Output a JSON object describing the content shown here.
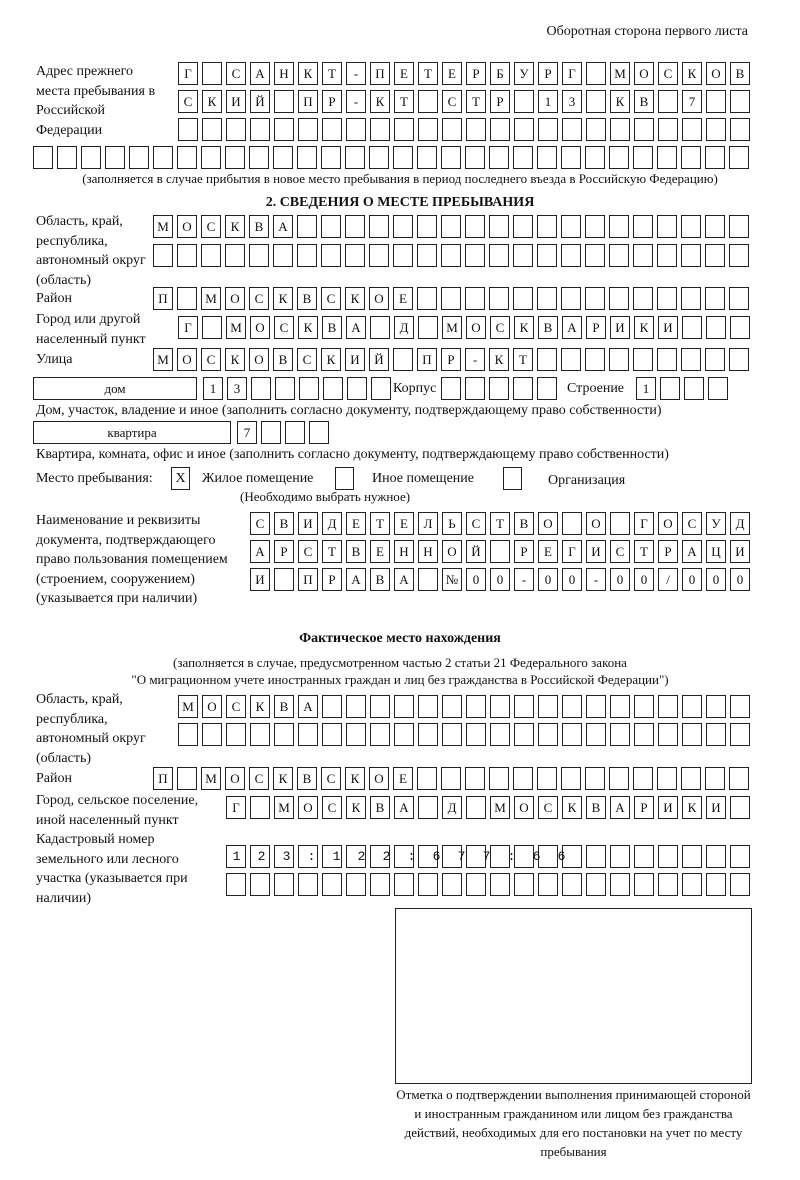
{
  "header": "Оборотная сторона первого листа",
  "previous_address": {
    "label": "Адрес прежнего места пребывания в Российской Федерации",
    "rows": [
      "Г САНКТ-ПЕТЕРБУРГ МОСКОВ",
      "СКИЙ ПР-КТ СТР 13 КВ 7  ",
      "                        ",
      "                              "
    ],
    "note": "(заполняется в случае прибытия в новое место пребывания в период последнего въезда в Российскую Федерацию)"
  },
  "section2": {
    "title": "2. СВЕДЕНИЯ О МЕСТЕ ПРЕБЫВАНИЯ",
    "region_label": "Область, край, республика, автономный округ (область)",
    "region_rows": [
      "МОСКВА                   ",
      "                         "
    ],
    "district_label": "Район",
    "district_row": "П МОСКВСКОЕ              ",
    "city_label": "Город или другой населенный пункт",
    "city_row": "Г МОСКВА Д МОСКВАРИКИ   ",
    "street_label": "Улица",
    "street_row": "МОСКОВСКИЙ ПР-КТ         ",
    "house_type": "дом",
    "house_row": "13      ",
    "korpus_label": "Корпус",
    "korpus_row": "     ",
    "building_label": "Строение",
    "building_row": "1   ",
    "house_note": "Дом, участок, владение и иное (заполнить согласно документу, подтверждающему право собственности)",
    "flat_type": "квартира",
    "flat_row": "7   ",
    "flat_note": "Квартира, комната, офис и иное (заполнить согласно документу, подтверждающему право собственности)",
    "stay_label": "Место пребывания:",
    "stay_options": [
      {
        "label": "Жилое помещение",
        "mark": "X"
      },
      {
        "label": "Иное помещение",
        "mark": ""
      },
      {
        "label": "Организация",
        "mark": ""
      }
    ],
    "stay_note": "(Необходимо выбрать нужное)",
    "doc_label": "Наименование и реквизиты документа, подтверждающего право пользования помещением (строением, сооружением) (указывается при наличии)",
    "doc_rows": [
      "СВИДЕТЕЛЬСТВО О ГОСУД",
      "АРСТВЕННОЙ РЕГИСТРАЦИ",
      "И ПРАВА №00-00-00/000"
    ]
  },
  "actual": {
    "title": "Фактическое место нахождения",
    "note1": "(заполняется в случае, предусмотренном частью 2 статьи 21 Федерального закона",
    "note2": "\"О миграционном учете иностранных граждан и лиц без гражданства в Российской Федерации\")",
    "region_label": "Область, край, республика, автономный округ (область)",
    "region_rows": [
      "МОСКВА                  ",
      "                        "
    ],
    "district_label": "Район",
    "district_row": "П МОСКВСКОЕ              ",
    "city_label": "Город, сельское поселение, иной населенный пункт",
    "city_row": "Г МОСКВА Д МОСКВАРИКИ ",
    "cadastral_label": "Кадастровый номер земельного или лесного участка (указывается при наличии)",
    "cadastral_rows": [
      "123:122:677:66        ",
      "                      "
    ]
  },
  "confirmation_note": "Отметка о подтверждении выполнения принимающей стороной и иностранным гражданином или лицом без гражданства действий, необходимых для его постановки на учет по месту пребывания"
}
